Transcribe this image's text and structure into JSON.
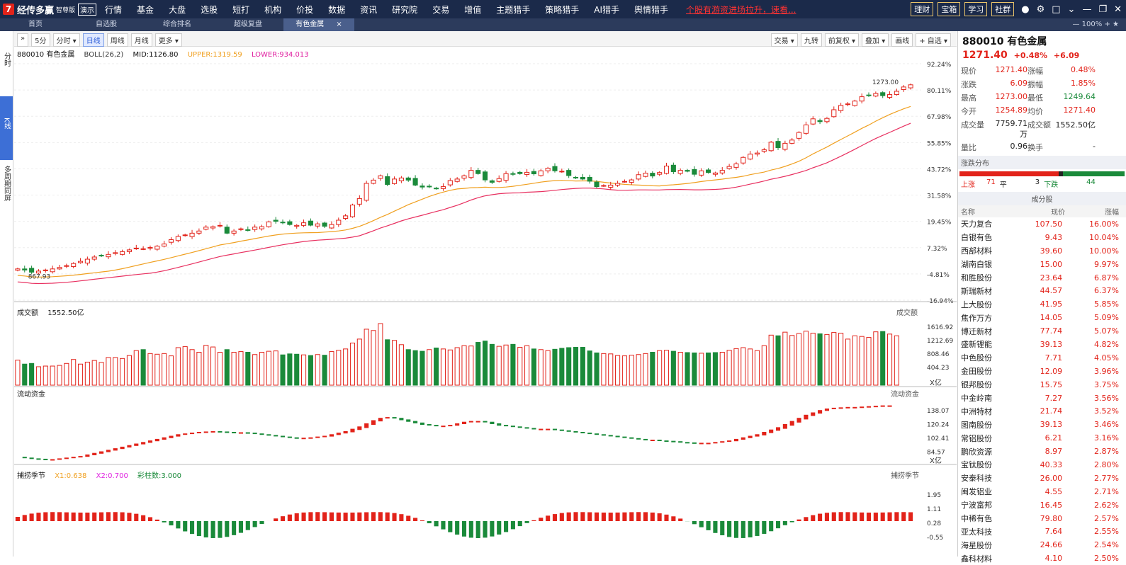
{
  "app": {
    "logo_mark": "7",
    "name": "经传多赢",
    "edition": "智尊版",
    "demo": "演示"
  },
  "menu": [
    "行情",
    "基金",
    "大盘",
    "选股",
    "短打",
    "机构",
    "价投",
    "数据",
    "资讯",
    "研究院",
    "交易",
    "增值",
    "主题猎手",
    "策略猎手",
    "AI猎手",
    "舆情猎手"
  ],
  "marquee": "个股有游资进场拉升，速看...",
  "top_buttons": [
    "理财",
    "宝箱",
    "学习",
    "社群"
  ],
  "tabs": [
    "首页",
    "自选股",
    "综合排名",
    "超级复盘",
    "有色金属"
  ],
  "active_tab": "有色金属",
  "zoom": "100%",
  "left_nav": {
    "fenshi": "分时",
    "kline": "K线",
    "multi": "多周期同屏"
  },
  "toolbar": {
    "periods": [
      "5分",
      "分时 ▾",
      "日线",
      "周线",
      "月线",
      "更多 ▾"
    ],
    "active": "日线",
    "right": [
      "交易 ▾",
      "九转",
      "前复权 ▾",
      "叠加 ▾",
      "画线",
      "+ 自选 ▾"
    ]
  },
  "indicator": {
    "code_name": "880010 有色金属",
    "name": "BOLL(26,2)",
    "mid": "MID:1126.80",
    "upper": "UPPER:1319.59",
    "lower": "LOWER:934.013"
  },
  "price_axis": [
    "92.24%",
    "80.11%",
    "67.98%",
    "55.85%",
    "43.72%",
    "31.58%",
    "19.45%",
    "7.32%",
    "-4.81%",
    "-16.94%"
  ],
  "high_label": "1273.00",
  "low_label": "867.93",
  "volume": {
    "title": "成交额",
    "value": "1552.50亿",
    "axis": [
      "1616.92",
      "1212.69",
      "808.46",
      "404.23"
    ],
    "unit": "X亿",
    "right_label": "成交额"
  },
  "flow": {
    "title": "流动资金",
    "axis": [
      "138.07",
      "120.24",
      "102.41",
      "84.57"
    ],
    "unit": "X亿",
    "right_label": "流动资金"
  },
  "season": {
    "title": "捕捞季节",
    "x1": "X1:0.638",
    "x2": "X2:0.700",
    "bars": "彩柱数:3.000",
    "axis": [
      "1.95",
      "1.11",
      "0.28",
      "-0.55"
    ],
    "right_label": "捕捞季节"
  },
  "quote": {
    "title": "880010 有色金属",
    "price": "1271.40",
    "pct": "+0.48%",
    "chg": "+6.09",
    "rows": [
      [
        "现价",
        "1271.40",
        "涨幅",
        "0.48%"
      ],
      [
        "涨跌",
        "6.09",
        "振幅",
        "1.85%"
      ],
      [
        "最高",
        "1273.00",
        "最低",
        "1249.64"
      ],
      [
        "今开",
        "1254.89",
        "均价",
        "1271.40"
      ],
      [
        "成交量",
        "7759.71万",
        "成交额",
        "1552.50亿"
      ],
      [
        "量比",
        "0.96",
        "换手",
        "-"
      ]
    ]
  },
  "dist": {
    "title": "涨跌分布",
    "up_label": "上涨",
    "up": "71",
    "flat_label": "平",
    "flat": "3",
    "down_label": "下跌",
    "down": "44"
  },
  "constituents": {
    "title": "成分股",
    "headers": [
      "名称",
      "现价",
      "涨幅"
    ],
    "rows": [
      [
        "天力复合",
        "107.50",
        "16.00%"
      ],
      [
        "白银有色",
        "9.43",
        "10.04%"
      ],
      [
        "西部材料",
        "39.60",
        "10.00%"
      ],
      [
        "湖南白银",
        "15.00",
        "9.97%"
      ],
      [
        "和胜股份",
        "23.64",
        "6.87%"
      ],
      [
        "斯瑞新材",
        "44.57",
        "6.37%"
      ],
      [
        "上大股份",
        "41.95",
        "5.85%"
      ],
      [
        "焦作万方",
        "14.05",
        "5.09%"
      ],
      [
        "博迁新材",
        "77.74",
        "5.07%"
      ],
      [
        "盛新锂能",
        "39.13",
        "4.82%"
      ],
      [
        "中色股份",
        "7.71",
        "4.05%"
      ],
      [
        "金田股份",
        "12.09",
        "3.96%"
      ],
      [
        "银邦股份",
        "15.75",
        "3.75%"
      ],
      [
        "中金岭南",
        "7.27",
        "3.56%"
      ],
      [
        "中洲特材",
        "21.74",
        "3.52%"
      ],
      [
        "图南股份",
        "39.13",
        "3.46%"
      ],
      [
        "常铝股份",
        "6.21",
        "3.16%"
      ],
      [
        "鹏欣资源",
        "8.97",
        "2.87%"
      ],
      [
        "宝钛股份",
        "40.33",
        "2.80%"
      ],
      [
        "安泰科技",
        "26.00",
        "2.77%"
      ],
      [
        "闽发铝业",
        "4.55",
        "2.71%"
      ],
      [
        "宁波富邦",
        "16.45",
        "2.62%"
      ],
      [
        "中稀有色",
        "79.80",
        "2.57%"
      ],
      [
        "亚太科技",
        "7.64",
        "2.55%"
      ],
      [
        "海星股份",
        "24.66",
        "2.54%"
      ],
      [
        "鑫科材料",
        "4.10",
        "2.50%"
      ]
    ]
  },
  "colors": {
    "up": "#e2231a",
    "down": "#1a8a3a",
    "mid": "#f0a020",
    "lower": "#e83060",
    "nav": "#1b2a4a"
  },
  "chart_data": {
    "type": "candlestick",
    "ylim": [
      -16.94,
      92.24
    ],
    "closes_pct": [
      -2.5,
      -3,
      -4,
      -3.5,
      -3,
      -2.5,
      -1.8,
      -1,
      0,
      1,
      2,
      3,
      3.5,
      4.2,
      5,
      5.5,
      6.3,
      7.1,
      6.8,
      7.4,
      8,
      9,
      11,
      12.5,
      13.2,
      14,
      15,
      16.8,
      17,
      17.6,
      14,
      15,
      16,
      15.3,
      16.8,
      17,
      19.2,
      19.5,
      18.9,
      18,
      17.6,
      18.8,
      17.7,
      18.3,
      17.2,
      18,
      20,
      22,
      27,
      30,
      37,
      38.5,
      40.5,
      36.5,
      39,
      39.5,
      38.5,
      36.2,
      35.3,
      35.6,
      34.6,
      35.5,
      38.3,
      39,
      40.5,
      43,
      41.5,
      38.6,
      37.5,
      39.2,
      41.5,
      41.3,
      41.5,
      42.1,
      41.4,
      42.8,
      44,
      42.8,
      42.6,
      40.6,
      39.8,
      39,
      38,
      35.5,
      36,
      36.2,
      37,
      37.9,
      38.6,
      41,
      41.7,
      40.4,
      42,
      45,
      42.4,
      43,
      42.6,
      41.2,
      42.8,
      42,
      41.8,
      43,
      44.8,
      46,
      49,
      50.5,
      51,
      52.5,
      56,
      53.5,
      55.5,
      57,
      60.5,
      64,
      66.8,
      65.5,
      67,
      71,
      73,
      73.7,
      75,
      77,
      77.7,
      78.5,
      77.5,
      78,
      79.5,
      81.5,
      82.5
    ],
    "volume": [
      760,
      640,
      660,
      560,
      580,
      580,
      600,
      660,
      780,
      640,
      700,
      750,
      690,
      840,
      840,
      810,
      900,
      1050,
      1080,
      960,
      940,
      960,
      890,
      1140,
      1170,
      1080,
      1000,
      1210,
      1160,
      1000,
      1080,
      1000,
      1020,
      1000,
      930,
      1000,
      1030,
      1040,
      920,
      950,
      940,
      920,
      900,
      930,
      910,
      1020,
      1060,
      1100,
      1280,
      1400,
      1700,
      1660,
      1870,
      1380,
      1360,
      1230,
      1080,
      1050,
      1030,
      1080,
      1130,
      1100,
      1070,
      1140,
      1200,
      1190,
      1300,
      1340,
      1240,
      1180,
      1220,
      1240,
      1150,
      1200,
      1100,
      1080,
      1050,
      1090,
      1120,
      1140,
      1150,
      1150,
      1040,
      980,
      960,
      950,
      900,
      890,
      910,
      930,
      960,
      1000,
      1050,
      1060,
      1030,
      1000,
      990,
      980,
      970,
      980,
      990,
      1000,
      1060,
      1110,
      1140,
      1100,
      1050,
      1200,
      1520,
      1500,
      1610,
      1510,
      1570,
      1640,
      1580,
      1560,
      1540,
      1600,
      1580,
      1400,
      1500,
      1480,
      1450,
      1620,
      1630,
      1552,
      1500
    ],
    "flow": [
      88,
      87,
      86,
      85.5,
      85,
      85,
      86,
      87,
      88,
      89,
      91,
      93,
      95,
      97,
      99,
      101,
      103,
      105,
      107,
      109,
      111,
      113,
      115,
      117,
      118,
      119,
      120,
      120.5,
      121,
      120.5,
      120,
      119.5,
      119.5,
      119,
      118,
      117,
      116,
      115,
      114,
      113,
      112.5,
      112.5,
      113,
      114,
      115,
      117,
      119,
      121,
      124,
      127,
      131,
      135,
      138,
      139,
      138,
      136,
      134,
      132,
      130,
      129,
      128,
      128,
      129,
      131,
      133,
      134,
      134,
      133,
      131,
      129,
      128,
      127,
      126,
      125,
      124,
      124,
      124,
      123,
      122,
      121,
      120,
      119,
      118,
      117,
      116,
      115,
      114,
      113,
      112,
      111,
      110,
      110,
      109,
      108.5,
      108,
      107,
      106.5,
      106,
      106,
      106,
      107,
      108,
      109,
      111,
      113,
      115,
      117,
      120,
      123,
      126,
      130,
      134,
      138,
      142,
      145,
      148,
      150,
      151,
      151.5,
      152,
      152,
      152.5,
      153,
      153.5,
      154,
      154
    ]
  }
}
